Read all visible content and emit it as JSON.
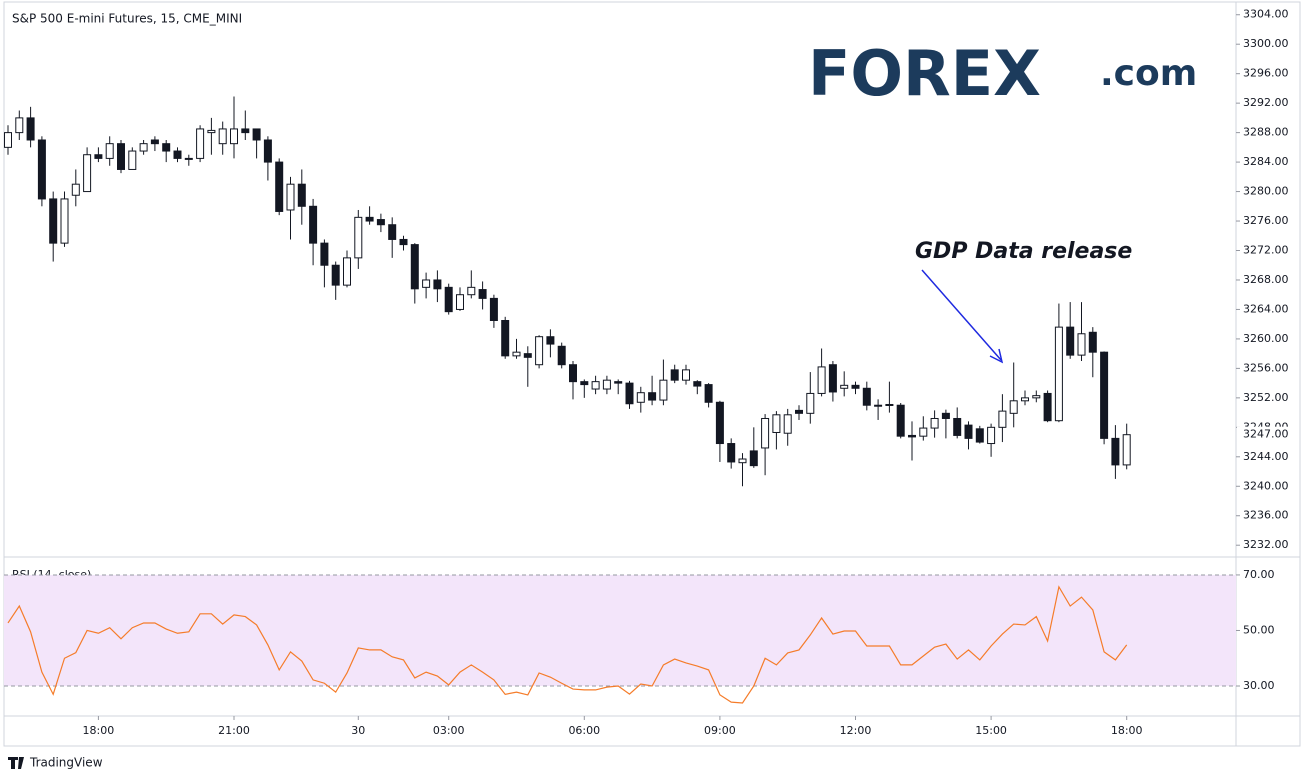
{
  "chart_data": [
    {
      "type": "candlestick",
      "title": "S&P 500 E-mini Futures, 15, CME_MINI",
      "categories": [
        null,
        null,
        null,
        null,
        null,
        null,
        null,
        null,
        "18:00",
        null,
        null,
        null,
        null,
        null,
        null,
        null,
        null,
        null,
        null,
        null,
        "21:00",
        null,
        null,
        null,
        null,
        null,
        null,
        null,
        null,
        null,
        null,
        "30",
        null,
        null,
        null,
        null,
        null,
        null,
        null,
        "03:00",
        null,
        null,
        null,
        null,
        null,
        null,
        null,
        null,
        null,
        null,
        null,
        "06:00",
        null,
        null,
        null,
        null,
        null,
        null,
        null,
        null,
        null,
        null,
        null,
        "09:00",
        null,
        null,
        null,
        null,
        null,
        null,
        null,
        null,
        null,
        null,
        null,
        "12:00",
        null,
        null,
        null,
        null,
        null,
        null,
        null,
        null,
        null,
        null,
        null,
        "15:00",
        null,
        null,
        null,
        null,
        null,
        null,
        null,
        null,
        null,
        null,
        null,
        "18:00"
      ],
      "open": [
        3286,
        3288,
        3290,
        3287,
        3279,
        3273,
        3279.5,
        3280,
        3285,
        3284.5,
        3286.5,
        3283,
        3285.5,
        3287,
        3286.5,
        3285.5,
        3284.5,
        3284.5,
        3288,
        3286.5,
        3286.5,
        3288.5,
        3288.5,
        3287,
        3284,
        3277.5,
        3281,
        3278,
        3273,
        3270,
        3267.3,
        3271,
        3276.5,
        3276.2,
        3275.5,
        3273.5,
        3272.8,
        3267,
        3268,
        3267,
        3264,
        3266,
        3266.7,
        3265.5,
        3262.5,
        3257.7,
        3258,
        3256.5,
        3260.3,
        3259,
        3256.5,
        3254.2,
        3253.2,
        3253.2,
        3254.2,
        3254,
        3251.4,
        3252.7,
        3251.7,
        3255.8,
        3254.4,
        3254.2,
        3253.8,
        3251.4,
        3245.8,
        3243.2,
        3244.8,
        3245.2,
        3247.3,
        3247.2,
        3250.3,
        3249.9,
        3252.6,
        3256.5,
        3253.3,
        3253.7,
        3253.3,
        3251,
        3251,
        3251,
        3246.9,
        3246.8,
        3247.9,
        3249.9,
        3249.2,
        3248.3,
        3247.8,
        3245.8,
        3248,
        3249.9,
        3251.6,
        3252,
        3252.6,
        3248.9,
        3261.6,
        3257.8,
        3260.9,
        3258.2,
        3246.5,
        3242.9
      ],
      "high": [
        3289,
        3291,
        3291.5,
        3287.5,
        3280,
        3280,
        3283,
        3286,
        3286,
        3287.5,
        3287,
        3286,
        3287,
        3287.5,
        3287,
        3286,
        3285,
        3289,
        3290,
        3289.5,
        3292.9,
        3291,
        3288.5,
        3287.5,
        3284.5,
        3282,
        3283,
        3279,
        3273.5,
        3270.5,
        3272,
        3277.5,
        3278,
        3277,
        3276.5,
        3274,
        3273,
        3269,
        3269.3,
        3267.5,
        3267,
        3269.3,
        3267.8,
        3266,
        3263,
        3260,
        3259,
        3260.5,
        3261.3,
        3259.5,
        3257,
        3254.5,
        3255,
        3255,
        3254.5,
        3254.3,
        3253.5,
        3255,
        3257.2,
        3256.5,
        3256.5,
        3254.4,
        3254,
        3251.6,
        3246.5,
        3244.5,
        3248,
        3249.8,
        3250.2,
        3250.5,
        3251,
        3255.5,
        3258.7,
        3257,
        3255.6,
        3254.2,
        3254.2,
        3251.8,
        3254.2,
        3251.3,
        3248.8,
        3249.5,
        3250.3,
        3250.4,
        3250.7,
        3248.8,
        3248.2,
        3248.5,
        3252.5,
        3256.8,
        3253,
        3253,
        3253,
        3264.8,
        3265,
        3265,
        3261.6,
        3258.3,
        3248.3,
        3248.5
      ],
      "low": [
        3285,
        3287,
        3286,
        3278,
        3270.5,
        3272.5,
        3278,
        3280,
        3284,
        3283.5,
        3282.5,
        3283,
        3285,
        3285.5,
        3284,
        3284,
        3283.5,
        3284,
        3285,
        3285,
        3284.5,
        3287,
        3284.5,
        3281.5,
        3276.8,
        3273.5,
        3275.5,
        3270,
        3267,
        3265.3,
        3267,
        3269.5,
        3275.5,
        3274.5,
        3271,
        3272,
        3264.8,
        3265.5,
        3265,
        3263.3,
        3263.8,
        3265.5,
        3264,
        3261.5,
        3257.3,
        3257.3,
        3253.5,
        3256,
        3257.5,
        3256,
        3251.8,
        3252,
        3252.5,
        3252.5,
        3252.5,
        3250.5,
        3250,
        3251,
        3251,
        3254,
        3253.8,
        3252.5,
        3250.7,
        3243.3,
        3242.4,
        3240,
        3242.5,
        3241.5,
        3245,
        3245.5,
        3249,
        3248.5,
        3252.2,
        3251.5,
        3252.2,
        3252.5,
        3250.3,
        3249,
        3250,
        3246.5,
        3243.5,
        3246.2,
        3246.6,
        3246.5,
        3246.5,
        3245,
        3245.8,
        3244,
        3246,
        3248,
        3251,
        3251.4,
        3248.7,
        3248.7,
        3257.3,
        3257,
        3254.8,
        3245.7,
        3241,
        3242.3
      ],
      "close": [
        3288,
        3290,
        3287,
        3279,
        3273,
        3279,
        3281,
        3285,
        3284.5,
        3286.5,
        3283,
        3285.5,
        3286.5,
        3286.5,
        3285.5,
        3284.5,
        3284.5,
        3288.5,
        3288.3,
        3288.5,
        3288.5,
        3288,
        3287,
        3284,
        3277.3,
        3281,
        3278,
        3273,
        3270,
        3267.3,
        3271,
        3276.5,
        3276,
        3275.5,
        3273.5,
        3272.8,
        3266.8,
        3268,
        3266.8,
        3263.7,
        3266,
        3267,
        3265.5,
        3262.5,
        3257.7,
        3258.2,
        3257.5,
        3260.3,
        3259.3,
        3256.5,
        3254.2,
        3253.8,
        3254.2,
        3254.4,
        3254,
        3251.2,
        3252.7,
        3251.7,
        3254.4,
        3254.4,
        3255.8,
        3253.6,
        3251.4,
        3245.8,
        3243.3,
        3243.7,
        3242.8,
        3249.2,
        3249.7,
        3249.7,
        3249.9,
        3252.6,
        3256.2,
        3252.8,
        3253.7,
        3253.3,
        3251,
        3251,
        3251.1,
        3246.8,
        3246.7,
        3247.9,
        3249.2,
        3249.2,
        3246.9,
        3246.5,
        3246,
        3248,
        3250.2,
        3251.6,
        3252,
        3252.3,
        3248.9,
        3261.6,
        3257.8,
        3260.7,
        3258.2,
        3246.5,
        3242.9,
        3247
      ],
      "up_color": "#ffffff",
      "down_color": "#131722",
      "ylim": [
        3230.4,
        3306
      ],
      "yticks": [
        {
          "value": 3232,
          "label": "3232.00"
        },
        {
          "value": 3236,
          "label": "3236.00"
        },
        {
          "value": 3240,
          "label": "3240.00"
        },
        {
          "value": 3244,
          "label": "3244.00"
        },
        {
          "value": 3248,
          "label": "3248.00"
        },
        {
          "value": 3252,
          "label": "3252.00"
        },
        {
          "value": 3256,
          "label": "3256.00"
        },
        {
          "value": 3260,
          "label": "3260.00"
        },
        {
          "value": 3264,
          "label": "3264.00"
        },
        {
          "value": 3268,
          "label": "3268.00"
        },
        {
          "value": 3272,
          "label": "3272.00"
        },
        {
          "value": 3276,
          "label": "3276.00"
        },
        {
          "value": 3280,
          "label": "3280.00"
        },
        {
          "value": 3284,
          "label": "3284.00"
        },
        {
          "value": 3288,
          "label": "3288.00"
        },
        {
          "value": 3292,
          "label": "3292.00"
        },
        {
          "value": 3296,
          "label": "3296.00"
        },
        {
          "value": 3300,
          "label": "3300.00"
        },
        {
          "value": 3304,
          "label": "3304.00"
        }
      ],
      "last_price": {
        "value": 3247,
        "label": "3247.00"
      },
      "annotation": "GDP Data release",
      "grid": false
    },
    {
      "type": "line",
      "title": "RSI (14, close)",
      "color": "#f57c2a",
      "band_color": "#f3e5fa",
      "values": [
        52.7,
        58.8,
        49.5,
        35,
        27,
        40,
        42,
        50,
        49,
        51,
        47,
        51,
        52.7,
        52.7,
        50.5,
        49,
        49.5,
        56,
        56,
        52.3,
        55.6,
        55,
        52,
        44.8,
        35.8,
        42.3,
        39,
        32.2,
        31,
        27.8,
        34.7,
        43.7,
        43,
        43,
        40.5,
        39.4,
        32.9,
        35,
        33.6,
        30.4,
        35,
        37.6,
        35,
        32.2,
        27,
        27.8,
        26.8,
        34.7,
        33.2,
        31,
        28.9,
        28.6,
        28.6,
        29.6,
        30,
        27.1,
        30.7,
        30,
        37.6,
        39.7,
        38.3,
        37.2,
        35.8,
        26.8,
        24.2,
        23.9,
        30,
        40,
        37.6,
        41.9,
        43,
        48.4,
        54.5,
        48.7,
        49.8,
        49.8,
        44.4,
        44.4,
        44.4,
        37.6,
        37.6,
        40.8,
        44,
        45.1,
        39.7,
        43,
        39.4,
        44.4,
        48.7,
        52.3,
        52,
        55,
        46.2,
        65.7,
        58.8,
        62,
        57.4,
        42.3,
        39.4,
        44.8
      ],
      "ylim": [
        19.2,
        76.1
      ],
      "yticks": [
        {
          "value": 30,
          "label": "30.00"
        },
        {
          "value": 50,
          "label": "50.00"
        },
        {
          "value": 70,
          "label": "70.00"
        }
      ]
    }
  ],
  "branding": {
    "name": "FOREX",
    "suffix": ".com"
  },
  "footer": "TradingView"
}
